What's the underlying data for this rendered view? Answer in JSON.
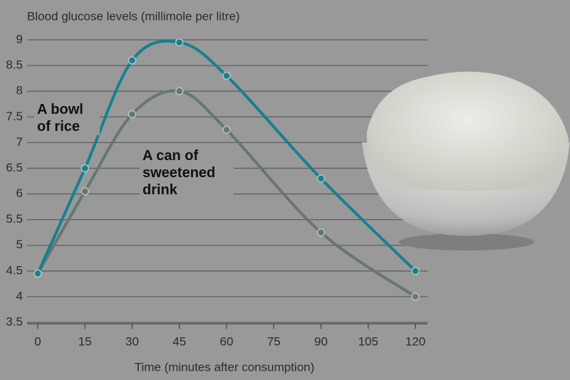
{
  "chart_data": {
    "type": "line",
    "title": "Blood glucose levels (millimole per litre)",
    "x_label": "Time (minutes after consumption)",
    "x": [
      0,
      15,
      30,
      45,
      60,
      90,
      120
    ],
    "series": [
      {
        "name": "A bowl of rice",
        "color": "#17808f",
        "values": [
          4.45,
          6.5,
          8.6,
          8.95,
          8.3,
          6.3,
          4.5
        ]
      },
      {
        "name": "A can of sweetened drink",
        "color": "#667673",
        "values": [
          4.45,
          6.05,
          7.55,
          8.0,
          7.25,
          5.25,
          4.0
        ]
      }
    ],
    "xlim": [
      0,
      120
    ],
    "xticks": [
      0,
      15,
      30,
      45,
      60,
      75,
      90,
      105,
      120
    ],
    "ylim": [
      3.5,
      9
    ],
    "yticks": [
      3.5,
      4,
      4.5,
      5,
      5.5,
      6,
      6.5,
      7,
      7.5,
      8,
      8.5,
      9
    ],
    "grid": true
  }
}
